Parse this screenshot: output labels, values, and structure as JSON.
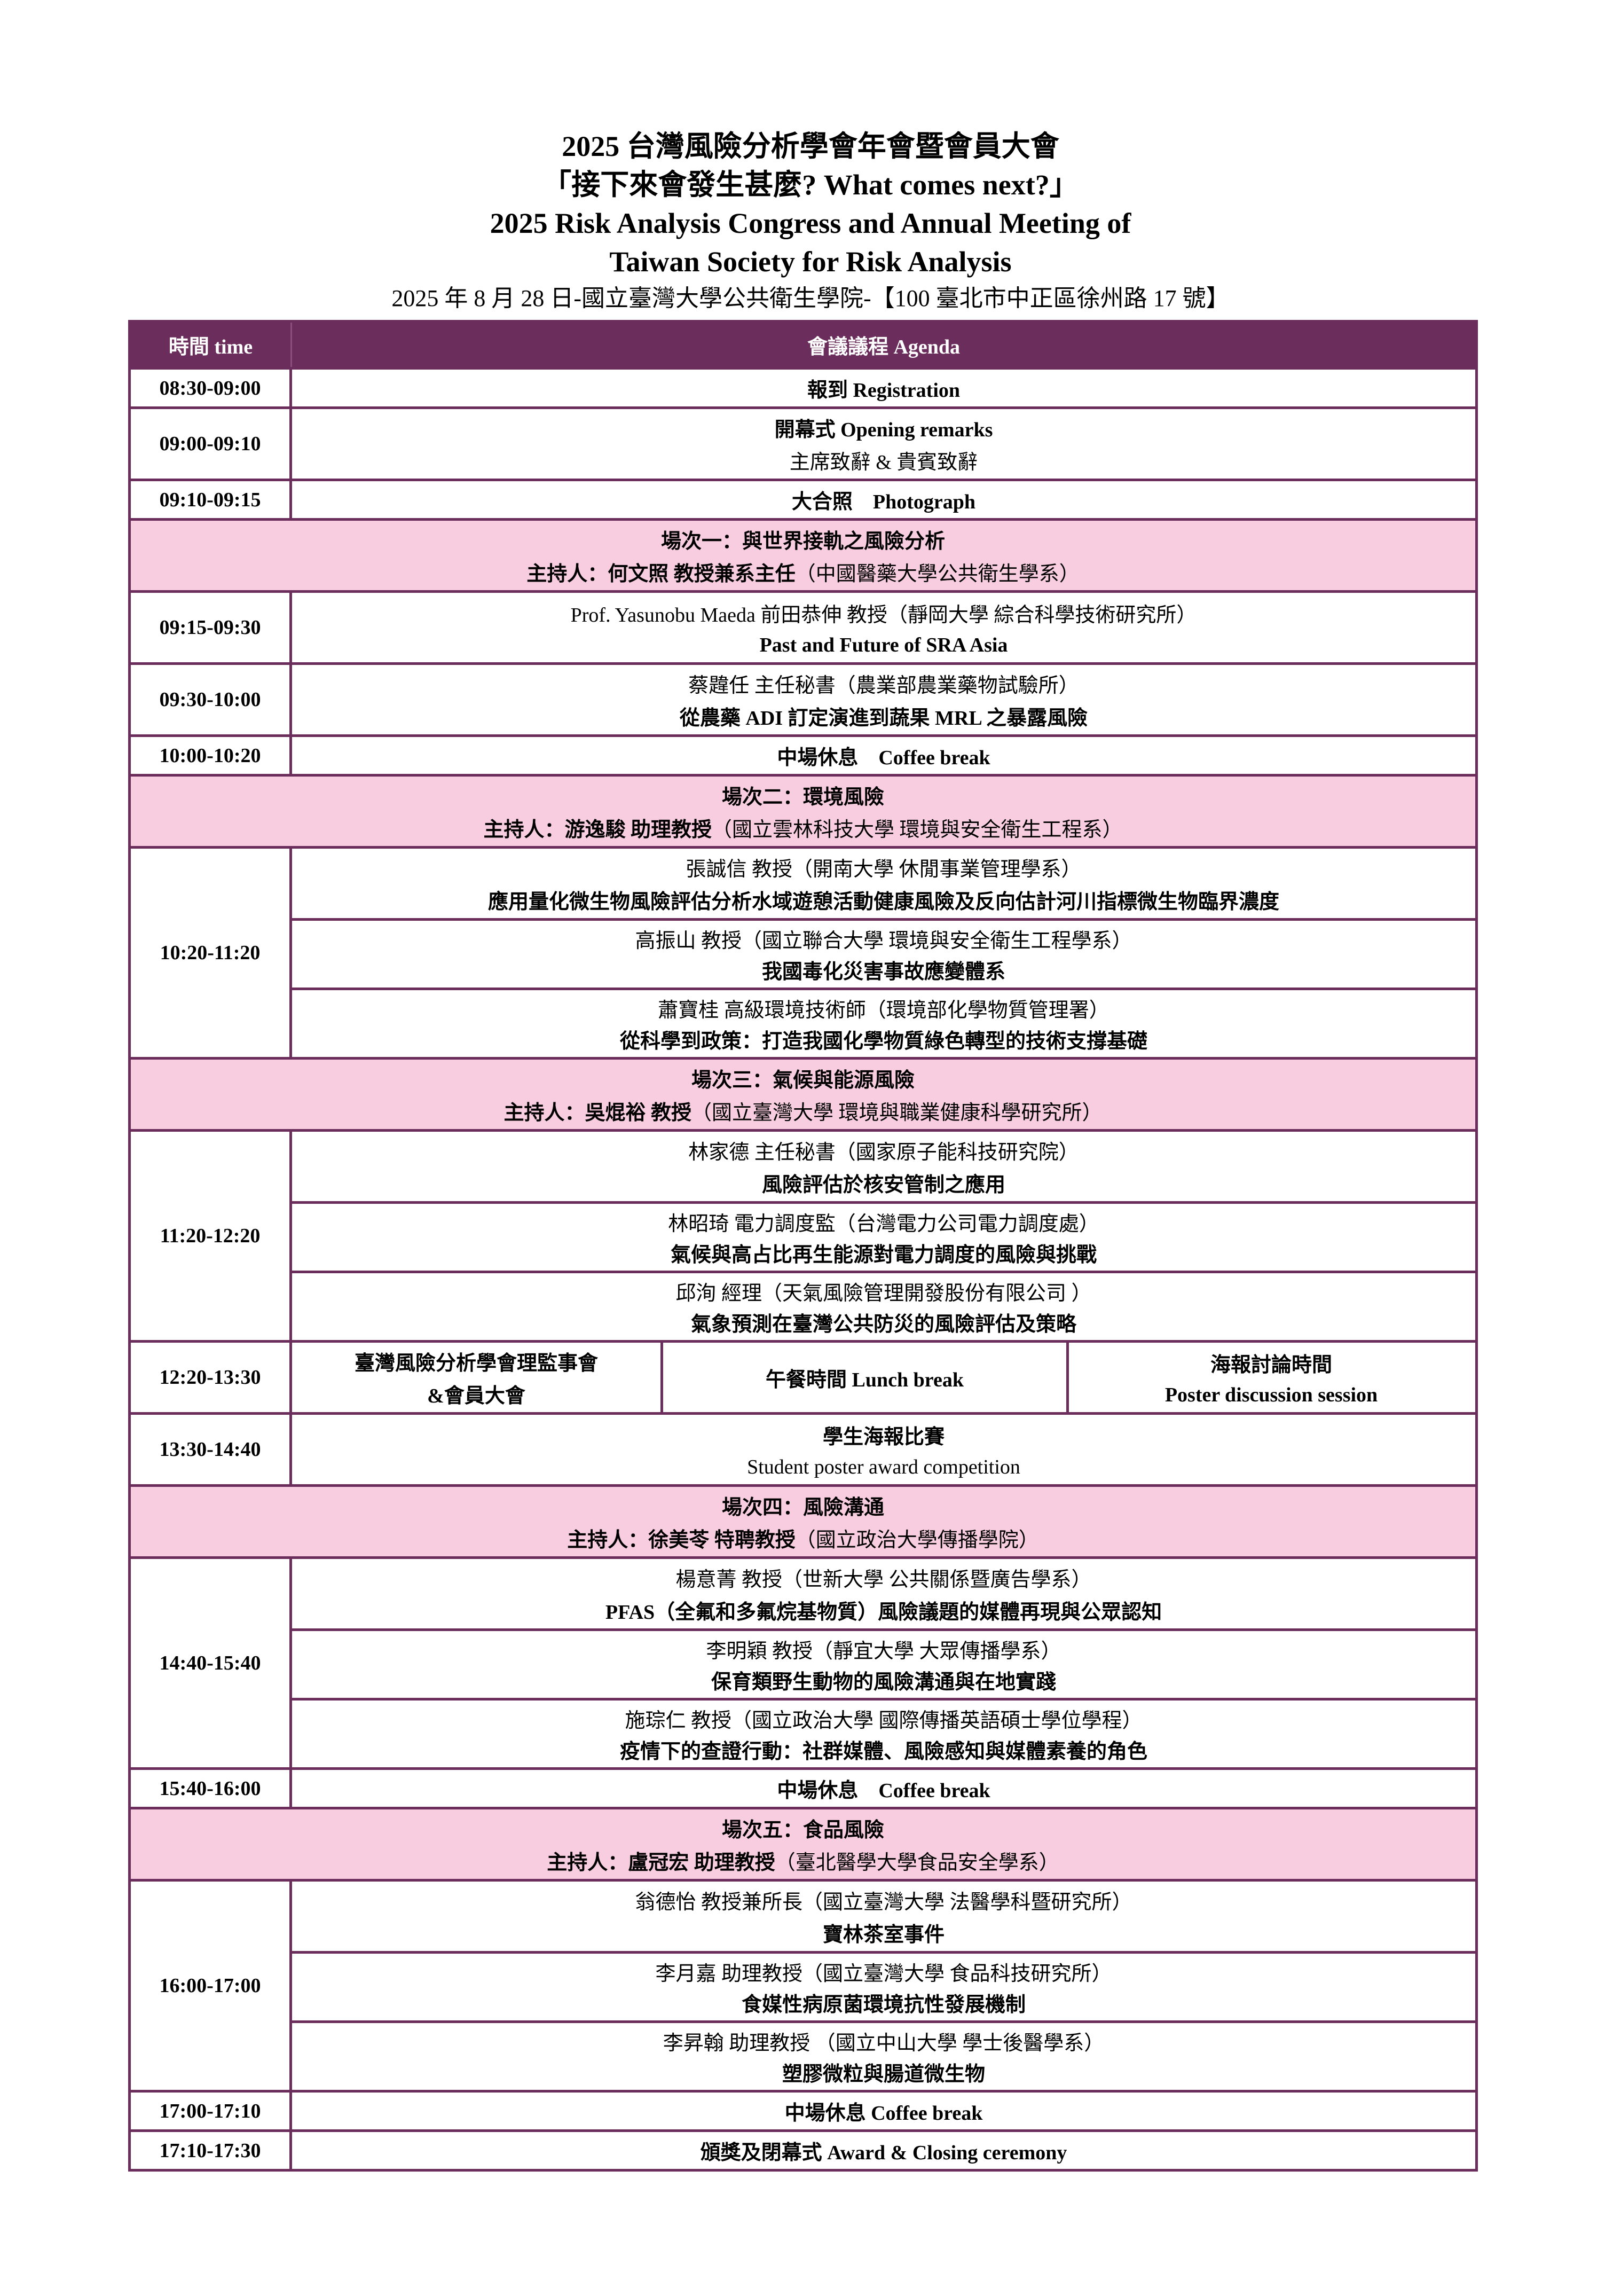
{
  "header": {
    "title_zh": "2025 台灣風險分析學會年會暨會員大會",
    "theme": "「接下來會發生甚麼? What comes next?」",
    "title_en_1": "2025 Risk Analysis Congress and Annual Meeting of",
    "title_en_2": "Taiwan Society for Risk Analysis",
    "date_venue": "2025 年 8 月 28 日-國立臺灣大學公共衛生學院-【100 臺北市中正區徐州路 17 號】"
  },
  "table": {
    "col_time": "時間 time",
    "col_agenda": "會議議程 Agenda",
    "colors": {
      "border": "#6b2d5b",
      "header_bg": "#6b2d5b",
      "session_bg": "#f8cde0"
    },
    "rows": [
      {
        "type": "simple",
        "time": "08:30-09:00",
        "lines": [
          {
            "text": "報到 Registration",
            "bold": true
          }
        ]
      },
      {
        "type": "simple",
        "time": "09:00-09:10",
        "lines": [
          {
            "text": "開幕式 Opening remarks",
            "bold": true
          },
          {
            "text": "主席致辭 & 貴賓致辭",
            "bold": false
          }
        ]
      },
      {
        "type": "simple",
        "time": "09:10-09:15",
        "lines": [
          {
            "text": "大合照　Photograph",
            "bold": true
          }
        ]
      },
      {
        "type": "session",
        "title": "場次一：與世界接軌之風險分析",
        "host": "主持人：何文照 教授兼系主任",
        "host_affil": "（中國醫藥大學公共衛生學系）"
      },
      {
        "type": "simple",
        "time": "09:15-09:30",
        "lines": [
          {
            "text": "Prof. Yasunobu Maeda 前田恭伸 教授（靜岡大學 綜合科學技術研究所）",
            "bold": false
          },
          {
            "text": "Past and Future of SRA Asia",
            "bold": true
          }
        ]
      },
      {
        "type": "simple",
        "time": "09:30-10:00",
        "lines": [
          {
            "text": "蔡韙任 主任秘書（農業部農業藥物試驗所）",
            "bold": false
          },
          {
            "text": "從農藥 ADI 訂定演進到蔬果 MRL 之暴露風險",
            "bold": true
          }
        ]
      },
      {
        "type": "simple",
        "time": "10:00-10:20",
        "lines": [
          {
            "text": "中場休息　Coffee break",
            "bold": true
          }
        ]
      },
      {
        "type": "session",
        "title": "場次二：環境風險",
        "host": "主持人：游逸駿 助理教授",
        "host_affil": "（國立雲林科技大學 環境與安全衛生工程系）"
      },
      {
        "type": "multi",
        "time": "10:20-11:20",
        "talks": [
          {
            "speaker": "張誠信 教授（開南大學 休閒事業管理學系）",
            "title": "應用量化微生物風險評估分析水域遊憩活動健康風險及反向估計河川指標微生物臨界濃度"
          },
          {
            "speaker": "高振山 教授（國立聯合大學 環境與安全衛生工程學系）",
            "title": "我國毒化災害事故應變體系"
          },
          {
            "speaker": "蕭寶桂 高級環境技術師（環境部化學物質管理署）",
            "title": "從科學到政策：打造我國化學物質綠色轉型的技術支撐基礎"
          }
        ]
      },
      {
        "type": "session",
        "title": "場次三：氣候與能源風險",
        "host": "主持人：吳焜裕 教授",
        "host_affil": "（國立臺灣大學 環境與職業健康科學研究所）"
      },
      {
        "type": "multi",
        "time": "11:20-12:20",
        "talks": [
          {
            "speaker": "林家德 主任秘書（國家原子能科技研究院）",
            "title": "風險評估於核安管制之應用"
          },
          {
            "speaker": "林昭琦 電力調度監（台灣電力公司電力調度處）",
            "title": "氣候與高占比再生能源對電力調度的風險與挑戰"
          },
          {
            "speaker": "邱洵 經理（天氣風險管理開發股份有限公司 ）",
            "title": "氣象預測在臺灣公共防災的風險評估及策略"
          }
        ]
      },
      {
        "type": "split",
        "time": "12:20-13:30",
        "cells": [
          [
            {
              "text": "臺灣風險分析學會理監事會",
              "bold": true
            },
            {
              "text": "&會員大會",
              "bold": true
            }
          ],
          [
            {
              "text": "午餐時間 Lunch break",
              "bold": true
            }
          ],
          [
            {
              "text": "海報討論時間",
              "bold": true
            },
            {
              "text": "Poster discussion session",
              "bold": true
            }
          ]
        ]
      },
      {
        "type": "simple",
        "time": "13:30-14:40",
        "lines": [
          {
            "text": "學生海報比賽",
            "bold": true
          },
          {
            "text": "Student poster award competition",
            "bold": false
          }
        ]
      },
      {
        "type": "session",
        "title": "場次四：風險溝通",
        "host": "主持人：徐美苓 特聘教授",
        "host_affil": "（國立政治大學傳播學院）"
      },
      {
        "type": "multi",
        "time": "14:40-15:40",
        "talks": [
          {
            "speaker": "楊意菁 教授（世新大學 公共關係暨廣告學系）",
            "title": "PFAS（全氟和多氟烷基物質）風險議題的媒體再現與公眾認知"
          },
          {
            "speaker": "李明穎 教授（靜宜大學 大眾傳播學系）",
            "title": "保育類野生動物的風險溝通與在地實踐"
          },
          {
            "speaker": "施琮仁 教授（國立政治大學 國際傳播英語碩士學位學程）",
            "title": "疫情下的查證行動：社群媒體、風險感知與媒體素養的角色"
          }
        ]
      },
      {
        "type": "simple",
        "time": "15:40-16:00",
        "lines": [
          {
            "text": "中場休息　Coffee break",
            "bold": true
          }
        ]
      },
      {
        "type": "session",
        "title": "場次五：食品風險",
        "host": "主持人：盧冠宏 助理教授",
        "host_affil": "（臺北醫學大學食品安全學系）"
      },
      {
        "type": "multi",
        "time": "16:00-17:00",
        "talks": [
          {
            "speaker": "翁德怡 教授兼所長（國立臺灣大學 法醫學科暨研究所）",
            "title": "寶林茶室事件"
          },
          {
            "speaker": "李月嘉 助理教授（國立臺灣大學 食品科技研究所）",
            "title": "食媒性病原菌環境抗性發展機制"
          },
          {
            "speaker": "李昇翰 助理教授 （國立中山大學 學士後醫學系）",
            "title": "塑膠微粒與腸道微生物"
          }
        ]
      },
      {
        "type": "simple",
        "time": "17:00-17:10",
        "lines": [
          {
            "text": "中場休息 Coffee break",
            "bold": true
          }
        ]
      },
      {
        "type": "simple",
        "time": "17:10-17:30",
        "lines": [
          {
            "text": "頒獎及閉幕式 Award & Closing ceremony",
            "bold": true
          }
        ]
      }
    ]
  }
}
